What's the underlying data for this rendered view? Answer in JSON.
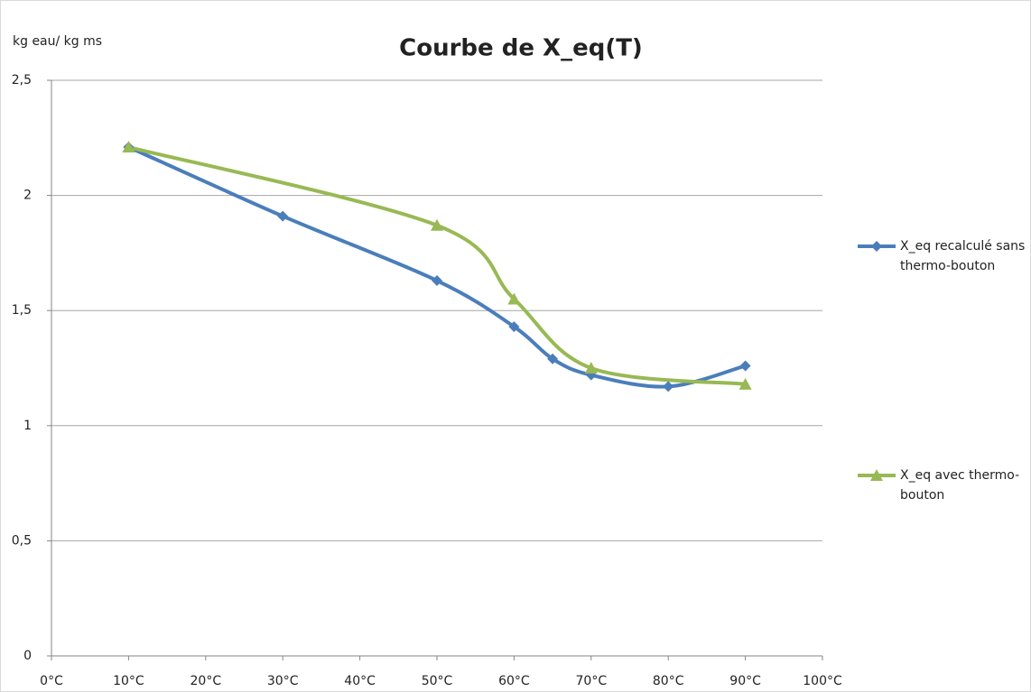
{
  "chart_data": {
    "type": "line",
    "smooth": true,
    "title": "Courbe de X_eq(T)",
    "y_label": "kg eau/ kg ms",
    "series": [
      {
        "name": "X_eq recalculé sans thermo-bouton",
        "color": "#4a7ebb",
        "marker": "diamond",
        "x": [
          10,
          30,
          50,
          60,
          65,
          70,
          80,
          90
        ],
        "values": [
          2.21,
          1.91,
          1.63,
          1.43,
          1.29,
          1.22,
          1.17,
          1.26
        ]
      },
      {
        "name": "X_eq avec thermo-bouton",
        "color": "#98b954",
        "marker": "triangle",
        "x": [
          10,
          50,
          60,
          70,
          90
        ],
        "values": [
          2.21,
          1.87,
          1.55,
          1.25,
          1.18
        ]
      }
    ],
    "xlim": [
      0,
      100
    ],
    "xticks": [
      {
        "value": 0,
        "label": "0°C"
      },
      {
        "value": 10,
        "label": "10°C"
      },
      {
        "value": 20,
        "label": "20°C"
      },
      {
        "value": 30,
        "label": "30°C"
      },
      {
        "value": 40,
        "label": "40°C"
      },
      {
        "value": 50,
        "label": "50°C"
      },
      {
        "value": 60,
        "label": "60°C"
      },
      {
        "value": 70,
        "label": "70°C"
      },
      {
        "value": 80,
        "label": "80°C"
      },
      {
        "value": 90,
        "label": "90°C"
      },
      {
        "value": 100,
        "label": "100°C"
      }
    ],
    "ylim": [
      0,
      2.5
    ],
    "yticks": [
      0,
      {
        "value": 0.5,
        "label": "0,5"
      },
      1,
      {
        "value": 1.5,
        "label": "1,5"
      },
      2,
      {
        "value": 2.5,
        "label": "2,5"
      }
    ],
    "grid": true,
    "legend": "right"
  }
}
